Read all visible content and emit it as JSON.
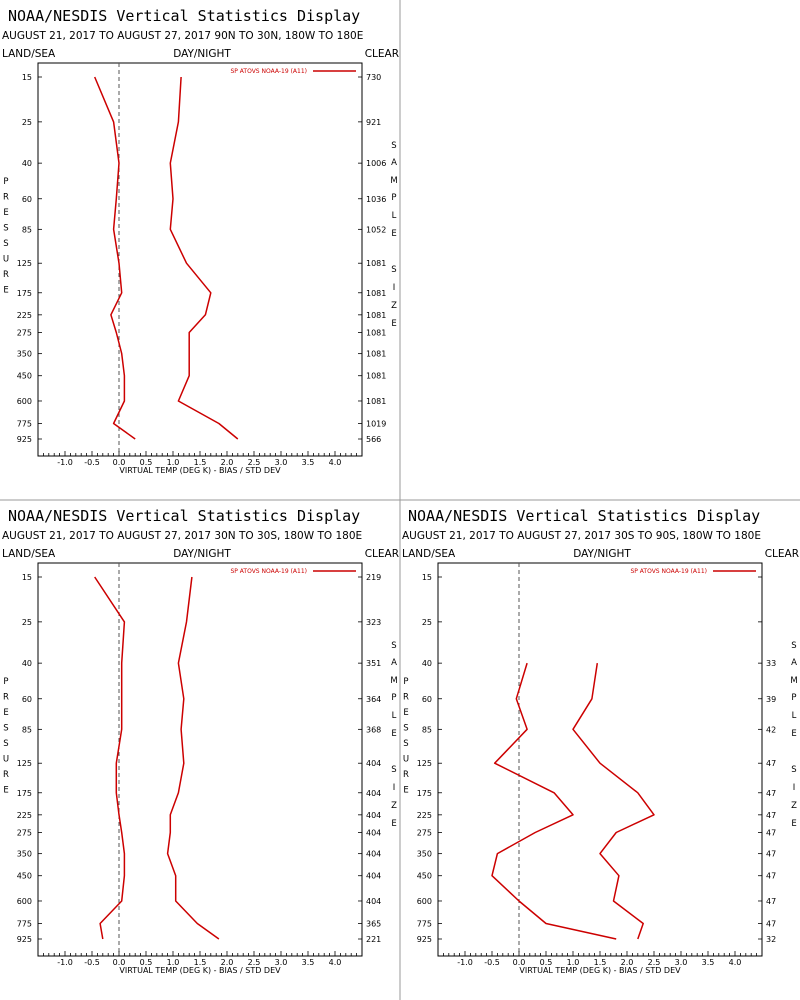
{
  "page": {
    "series_color": "#cc0000",
    "panel_divider_color": "#9a9a9a",
    "zero_line_style": "dashed"
  },
  "panels": [
    {
      "title": "NOAA/NESDIS Vertical Statistics Display",
      "subtitle": "AUGUST 21, 2017 TO AUGUST 27, 2017  90N TO 30N, 180W TO 180E",
      "left_label": "LAND/SEA",
      "center_label": "DAY/NIGHT",
      "right_label": "CLEAR",
      "y_axis_title": "PRESSURE",
      "right_axis_title": "SAMPLE SIZE",
      "x_axis_title": "VIRTUAL TEMP (DEG K) - BIAS / STD DEV"
    },
    {
      "title": "NOAA/NESDIS Vertical Statistics Display",
      "subtitle": "AUGUST 21, 2017 TO AUGUST 27, 2017  30N TO 30S, 180W TO 180E",
      "left_label": "LAND/SEA",
      "center_label": "DAY/NIGHT",
      "right_label": "CLEAR",
      "y_axis_title": "PRESSURE",
      "right_axis_title": "SAMPLE SIZE",
      "x_axis_title": "VIRTUAL TEMP (DEG K) - BIAS / STD DEV"
    },
    {
      "title": "NOAA/NESDIS Vertical Statistics Display",
      "subtitle": "AUGUST 21, 2017 TO AUGUST 27, 2017  30S TO 90S, 180W TO 180E",
      "left_label": "LAND/SEA",
      "center_label": "DAY/NIGHT",
      "right_label": "CLEAR",
      "y_axis_title": "PRESSURE",
      "right_axis_title": "SAMPLE SIZE",
      "x_axis_title": "VIRTUAL TEMP (DEG K) - BIAS / STD DEV"
    }
  ],
  "chart_data": [
    {
      "type": "line",
      "title": "NOAA/NESDIS Vertical Statistics Display",
      "xlabel": "VIRTUAL TEMP (DEG K) - BIAS / STD DEV",
      "ylabel": "PRESSURE",
      "y2label": "SAMPLE SIZE",
      "xlim": [
        -1.5,
        4.5
      ],
      "x_ticks": [
        "-1.0",
        "-0.5",
        "0.0",
        "0.5",
        "1.0",
        "1.5",
        "2.0",
        "2.5",
        "3.0",
        "3.5",
        "4.0"
      ],
      "y_ticks": [
        "15",
        "25",
        "40",
        "60",
        "85",
        "125",
        "175",
        "225",
        "275",
        "350",
        "450",
        "600",
        "775",
        "925"
      ],
      "y_scale": "log",
      "y_inverted": true,
      "legend": "SP ATOVS NOAA-19 (A11)",
      "legend_position": "top-right",
      "pressure": [
        15,
        25,
        40,
        60,
        85,
        125,
        175,
        225,
        275,
        350,
        450,
        600,
        775,
        925
      ],
      "sample_size": [
        "730",
        "921",
        "1006",
        "1036",
        "1052",
        "1081",
        "1081",
        "1081",
        "1081",
        "1081",
        "1081",
        "1081",
        "1019",
        "566"
      ],
      "series": [
        {
          "values": [
            -0.45,
            -0.1,
            0.0,
            -0.05,
            -0.1,
            0.0,
            0.05,
            -0.15,
            -0.05,
            0.05,
            0.1,
            0.1,
            -0.1,
            0.3
          ]
        },
        {
          "values": [
            1.15,
            1.1,
            0.95,
            1.0,
            0.95,
            1.25,
            1.7,
            1.6,
            1.3,
            1.3,
            1.3,
            1.1,
            1.85,
            2.2
          ]
        }
      ]
    },
    {
      "type": "line",
      "title": "NOAA/NESDIS Vertical Statistics Display",
      "xlabel": "VIRTUAL TEMP (DEG K) - BIAS / STD DEV",
      "ylabel": "PRESSURE",
      "y2label": "SAMPLE SIZE",
      "xlim": [
        -1.5,
        4.5
      ],
      "x_ticks": [
        "-1.0",
        "-0.5",
        "0.0",
        "0.5",
        "1.0",
        "1.5",
        "2.0",
        "2.5",
        "3.0",
        "3.5",
        "4.0"
      ],
      "y_ticks": [
        "15",
        "25",
        "40",
        "60",
        "85",
        "125",
        "175",
        "225",
        "275",
        "350",
        "450",
        "600",
        "775",
        "925"
      ],
      "y_scale": "log",
      "y_inverted": true,
      "legend": "SP ATOVS NOAA-19 (A11)",
      "legend_position": "top-right",
      "pressure": [
        15,
        25,
        40,
        60,
        85,
        125,
        175,
        225,
        275,
        350,
        450,
        600,
        775,
        925
      ],
      "sample_size": [
        "219",
        "323",
        "351",
        "364",
        "368",
        "404",
        "404",
        "404",
        "404",
        "404",
        "404",
        "404",
        "365",
        "221"
      ],
      "series": [
        {
          "values": [
            -0.45,
            0.1,
            0.05,
            0.05,
            0.05,
            -0.05,
            -0.05,
            0.0,
            0.05,
            0.1,
            0.1,
            0.05,
            -0.35,
            -0.3
          ]
        },
        {
          "values": [
            1.35,
            1.25,
            1.1,
            1.2,
            1.15,
            1.2,
            1.1,
            0.95,
            0.95,
            0.9,
            1.05,
            1.05,
            1.45,
            1.85
          ]
        }
      ]
    },
    {
      "type": "line",
      "title": "NOAA/NESDIS Vertical Statistics Display",
      "xlabel": "VIRTUAL TEMP (DEG K) - BIAS / STD DEV",
      "ylabel": "PRESSURE",
      "y2label": "SAMPLE SIZE",
      "xlim": [
        -1.5,
        4.5
      ],
      "x_ticks": [
        "-1.0",
        "-0.5",
        "0.0",
        "0.5",
        "1.0",
        "1.5",
        "2.0",
        "2.5",
        "3.0",
        "3.5",
        "4.0"
      ],
      "y_ticks": [
        "15",
        "25",
        "40",
        "60",
        "85",
        "125",
        "175",
        "225",
        "275",
        "350",
        "450",
        "600",
        "775",
        "925"
      ],
      "y_scale": "log",
      "y_inverted": true,
      "legend": "SP ATOVS NOAA-19 (A11)",
      "legend_position": "top-right",
      "pressure": [
        40,
        60,
        85,
        125,
        175,
        225,
        275,
        350,
        450,
        600,
        775,
        925
      ],
      "sample_size": [
        "33",
        "39",
        "42",
        "47",
        "47",
        "47",
        "47",
        "47",
        "47",
        "47",
        "47",
        "32"
      ],
      "series": [
        {
          "values": [
            0.15,
            -0.05,
            0.15,
            -0.45,
            0.65,
            1.0,
            0.3,
            -0.4,
            -0.5,
            0.0,
            0.5,
            1.8
          ]
        },
        {
          "values": [
            1.45,
            1.35,
            1.0,
            1.5,
            2.2,
            2.5,
            1.8,
            1.5,
            1.85,
            1.75,
            2.3,
            2.2
          ]
        }
      ]
    }
  ]
}
